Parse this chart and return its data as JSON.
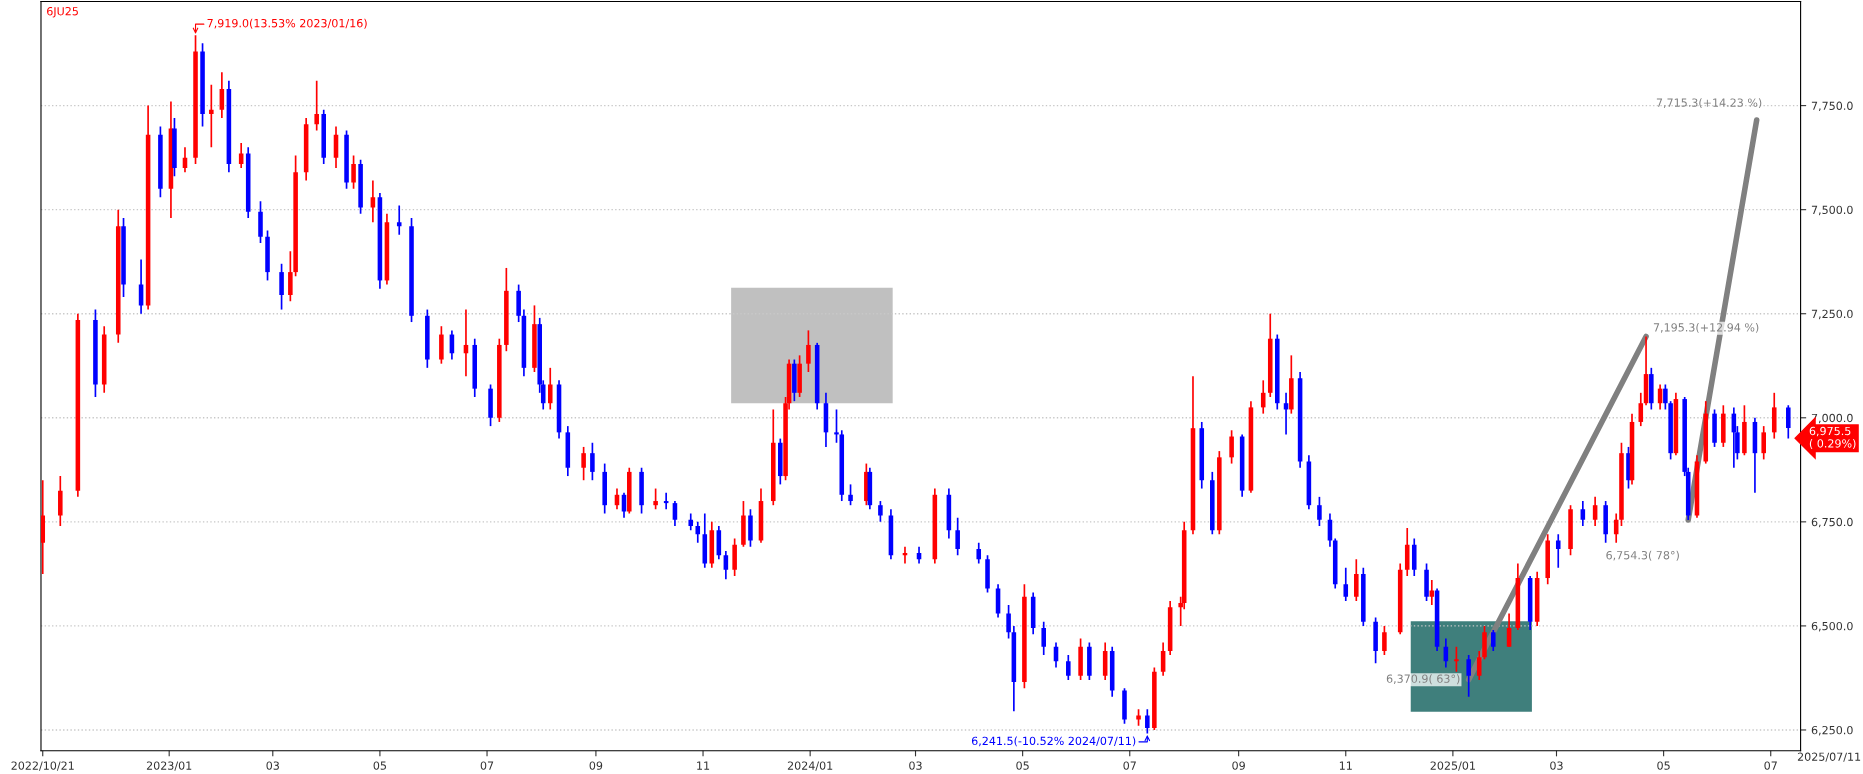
{
  "chart_data": {
    "type": "candlestick",
    "title": "6JU25",
    "x": [
      "2022-10-21",
      "2022-10-31",
      "2022-11-10",
      "2022-11-20",
      "2022-11-25",
      "2022-12-03",
      "2022-12-06",
      "2022-12-16",
      "2022-12-20",
      "2022-12-27",
      "2023-01-02",
      "2023-01-04",
      "2023-01-10",
      "2023-01-16",
      "2023-01-20",
      "2023-01-25",
      "2023-01-31",
      "2023-02-04",
      "2023-02-11",
      "2023-02-15",
      "2023-02-22",
      "2023-02-26",
      "2023-03-06",
      "2023-03-11",
      "2023-03-14",
      "2023-03-20",
      "2023-03-26",
      "2023-03-30",
      "2023-04-06",
      "2023-04-12",
      "2023-04-16",
      "2023-04-20",
      "2023-04-27",
      "2023-05-01",
      "2023-05-05",
      "2023-05-12",
      "2023-05-19",
      "2023-05-28",
      "2023-06-05",
      "2023-06-11",
      "2023-06-19",
      "2023-06-24",
      "2023-07-03",
      "2023-07-08",
      "2023-07-12",
      "2023-07-19",
      "2023-07-22",
      "2023-07-28",
      "2023-07-31",
      "2023-08-02",
      "2023-08-06",
      "2023-08-11",
      "2023-08-16",
      "2023-08-25",
      "2023-08-30",
      "2023-09-06",
      "2023-09-13",
      "2023-09-17",
      "2023-09-20",
      "2023-09-27",
      "2023-10-05",
      "2023-10-11",
      "2023-10-16",
      "2023-10-25",
      "2023-10-29",
      "2023-11-02",
      "2023-11-06",
      "2023-11-10",
      "2023-11-14",
      "2023-11-19",
      "2023-11-24",
      "2023-11-28",
      "2023-12-04",
      "2023-12-11",
      "2023-12-15",
      "2023-12-18",
      "2023-12-20",
      "2023-12-23",
      "2023-12-26",
      "2023-12-31",
      "2024-01-05",
      "2024-01-10",
      "2024-01-16",
      "2024-01-19",
      "2024-01-24",
      "2024-02-02",
      "2024-02-04",
      "2024-02-10",
      "2024-02-16",
      "2024-02-24",
      "2024-03-03",
      "2024-03-12",
      "2024-03-20",
      "2024-03-25",
      "2024-04-06",
      "2024-04-11",
      "2024-04-17",
      "2024-04-23",
      "2024-04-26",
      "2024-05-02",
      "2024-05-07",
      "2024-05-13",
      "2024-05-20",
      "2024-05-27",
      "2024-06-03",
      "2024-06-08",
      "2024-06-17",
      "2024-06-21",
      "2024-06-28",
      "2024-07-06",
      "2024-07-11",
      "2024-07-15",
      "2024-07-20",
      "2024-07-24",
      "2024-07-30",
      "2024-08-01",
      "2024-08-06",
      "2024-08-11",
      "2024-08-17",
      "2024-08-21",
      "2024-08-28",
      "2024-09-03",
      "2024-09-08",
      "2024-09-15",
      "2024-09-19",
      "2024-09-23",
      "2024-09-28",
      "2024-10-01",
      "2024-10-06",
      "2024-10-11",
      "2024-10-17",
      "2024-10-23",
      "2024-10-26",
      "2024-11-01",
      "2024-11-07",
      "2024-11-11",
      "2024-11-18",
      "2024-11-23",
      "2024-12-02",
      "2024-12-06",
      "2024-12-10",
      "2024-12-17",
      "2024-12-20",
      "2024-12-23",
      "2024-12-28",
      "2025-01-03",
      "2025-01-10",
      "2025-01-16",
      "2025-01-19",
      "2025-01-24",
      "2025-02-02",
      "2025-02-07",
      "2025-02-14",
      "2025-02-18",
      "2025-02-24",
      "2025-03-02",
      "2025-03-09",
      "2025-03-16",
      "2025-03-23",
      "2025-03-29",
      "2025-04-04",
      "2025-04-07",
      "2025-04-11",
      "2025-04-13",
      "2025-04-18",
      "2025-04-21",
      "2025-04-24",
      "2025-04-29",
      "2025-05-02",
      "2025-05-05",
      "2025-05-08",
      "2025-05-13",
      "2025-05-15",
      "2025-05-20",
      "2025-05-25",
      "2025-05-30",
      "2025-06-04",
      "2025-06-10",
      "2025-06-12",
      "2025-06-16",
      "2025-06-22",
      "2025-06-27",
      "2025-07-03",
      "2025-07-11"
    ],
    "ohlc": [
      [
        6700,
        6850,
        6625,
        6765
      ],
      [
        6765,
        6860,
        6740,
        6825
      ],
      [
        6825,
        7250,
        6810,
        7235
      ],
      [
        7235,
        7260,
        7050,
        7080
      ],
      [
        7080,
        7220,
        7060,
        7200
      ],
      [
        7200,
        7500,
        7180,
        7460
      ],
      [
        7460,
        7480,
        7290,
        7320
      ],
      [
        7320,
        7380,
        7250,
        7270
      ],
      [
        7270,
        7750,
        7260,
        7680
      ],
      [
        7680,
        7700,
        7530,
        7550
      ],
      [
        7550,
        7760,
        7480,
        7695
      ],
      [
        7695,
        7720,
        7580,
        7600
      ],
      [
        7600,
        7650,
        7590,
        7625
      ],
      [
        7625,
        7919,
        7610,
        7880
      ],
      [
        7880,
        7900,
        7700,
        7730
      ],
      [
        7730,
        7800,
        7650,
        7740
      ],
      [
        7740,
        7830,
        7720,
        7790
      ],
      [
        7790,
        7810,
        7590,
        7610
      ],
      [
        7610,
        7660,
        7600,
        7635
      ],
      [
        7635,
        7650,
        7480,
        7495
      ],
      [
        7495,
        7520,
        7420,
        7435
      ],
      [
        7435,
        7450,
        7330,
        7350
      ],
      [
        7350,
        7370,
        7260,
        7295
      ],
      [
        7295,
        7400,
        7280,
        7350
      ],
      [
        7350,
        7630,
        7340,
        7590
      ],
      [
        7590,
        7720,
        7570,
        7705
      ],
      [
        7705,
        7810,
        7690,
        7730
      ],
      [
        7730,
        7740,
        7610,
        7625
      ],
      [
        7625,
        7700,
        7600,
        7680
      ],
      [
        7680,
        7690,
        7550,
        7565
      ],
      [
        7565,
        7630,
        7550,
        7610
      ],
      [
        7610,
        7620,
        7490,
        7505
      ],
      [
        7505,
        7570,
        7470,
        7530
      ],
      [
        7530,
        7540,
        7310,
        7330
      ],
      [
        7330,
        7490,
        7320,
        7470
      ],
      [
        7470,
        7510,
        7440,
        7460
      ],
      [
        7460,
        7480,
        7230,
        7245
      ],
      [
        7245,
        7260,
        7120,
        7140
      ],
      [
        7140,
        7220,
        7130,
        7200
      ],
      [
        7200,
        7210,
        7140,
        7155
      ],
      [
        7155,
        7260,
        7100,
        7175
      ],
      [
        7175,
        7190,
        7050,
        7070
      ],
      [
        7070,
        7080,
        6980,
        7000
      ],
      [
        7000,
        7190,
        6990,
        7175
      ],
      [
        7175,
        7360,
        7160,
        7305
      ],
      [
        7305,
        7320,
        7230,
        7245
      ],
      [
        7245,
        7260,
        7100,
        7120
      ],
      [
        7120,
        7270,
        7110,
        7225
      ],
      [
        7225,
        7240,
        7060,
        7080
      ],
      [
        7080,
        7090,
        7020,
        7035
      ],
      [
        7035,
        7120,
        7020,
        7080
      ],
      [
        7080,
        7090,
        6950,
        6965
      ],
      [
        6965,
        6980,
        6860,
        6880
      ],
      [
        6880,
        6930,
        6850,
        6915
      ],
      [
        6915,
        6940,
        6850,
        6870
      ],
      [
        6870,
        6890,
        6770,
        6790
      ],
      [
        6790,
        6830,
        6780,
        6815
      ],
      [
        6815,
        6820,
        6760,
        6775
      ],
      [
        6775,
        6880,
        6770,
        6870
      ],
      [
        6870,
        6880,
        6770,
        6790
      ],
      [
        6790,
        6830,
        6780,
        6800
      ],
      [
        6800,
        6820,
        6780,
        6795
      ],
      [
        6795,
        6800,
        6740,
        6755
      ],
      [
        6755,
        6770,
        6730,
        6740
      ],
      [
        6740,
        6750,
        6700,
        6720
      ],
      [
        6720,
        6770,
        6640,
        6650
      ],
      [
        6650,
        6750,
        6640,
        6730
      ],
      [
        6730,
        6740,
        6660,
        6670
      ],
      [
        6670,
        6680,
        6612,
        6635
      ],
      [
        6635,
        6710,
        6620,
        6695
      ],
      [
        6695,
        6800,
        6690,
        6765
      ],
      [
        6765,
        6780,
        6690,
        6705
      ],
      [
        6705,
        6830,
        6700,
        6800
      ],
      [
        6800,
        7020,
        6790,
        6940
      ],
      [
        6940,
        6950,
        6840,
        6860
      ],
      [
        6860,
        7050,
        6850,
        7035
      ],
      [
        7035,
        7140,
        7020,
        7130
      ],
      [
        7130,
        7140,
        7040,
        7060
      ],
      [
        7060,
        7150,
        7050,
        7130
      ],
      [
        7130,
        7210,
        7110,
        7175
      ],
      [
        7175,
        7180,
        7020,
        7035
      ],
      [
        7035,
        7060,
        6930,
        6965
      ],
      [
        6965,
        7020,
        6940,
        6960
      ],
      [
        6960,
        6970,
        6800,
        6815
      ],
      [
        6815,
        6840,
        6790,
        6800
      ],
      [
        6800,
        6890,
        6790,
        6870
      ],
      [
        6870,
        6880,
        6780,
        6790
      ],
      [
        6790,
        6800,
        6750,
        6765
      ],
      [
        6765,
        6780,
        6660,
        6670
      ],
      [
        6670,
        6690,
        6650,
        6675
      ],
      [
        6675,
        6690,
        6650,
        6660
      ],
      [
        6660,
        6830,
        6650,
        6815
      ],
      [
        6815,
        6830,
        6710,
        6730
      ],
      [
        6730,
        6760,
        6670,
        6685
      ],
      [
        6685,
        6700,
        6650,
        6660
      ],
      [
        6660,
        6670,
        6580,
        6590
      ],
      [
        6590,
        6600,
        6520,
        6530
      ],
      [
        6530,
        6550,
        6470,
        6485
      ],
      [
        6485,
        6500,
        6295,
        6365
      ],
      [
        6365,
        6600,
        6350,
        6570
      ],
      [
        6570,
        6580,
        6480,
        6495
      ],
      [
        6495,
        6510,
        6430,
        6450
      ],
      [
        6450,
        6460,
        6400,
        6415
      ],
      [
        6415,
        6430,
        6370,
        6380
      ],
      [
        6380,
        6470,
        6370,
        6450
      ],
      [
        6450,
        6460,
        6370,
        6380
      ],
      [
        6380,
        6460,
        6370,
        6440
      ],
      [
        6440,
        6450,
        6330,
        6345
      ],
      [
        6345,
        6350,
        6265,
        6275
      ],
      [
        6275,
        6300,
        6260,
        6285
      ],
      [
        6285,
        6300,
        6241.5,
        6255
      ],
      [
        6255,
        6400,
        6250,
        6390
      ],
      [
        6390,
        6460,
        6380,
        6440
      ],
      [
        6440,
        6560,
        6430,
        6545
      ],
      [
        6545,
        6570,
        6500,
        6555
      ],
      [
        6555,
        6750,
        6540,
        6730
      ],
      [
        6730,
        7100,
        6720,
        6975
      ],
      [
        6975,
        6990,
        6830,
        6850
      ],
      [
        6850,
        6870,
        6720,
        6730
      ],
      [
        6730,
        6920,
        6720,
        6905
      ],
      [
        6905,
        6970,
        6890,
        6955
      ],
      [
        6955,
        6960,
        6810,
        6825
      ],
      [
        6825,
        7040,
        6820,
        7025
      ],
      [
        7025,
        7090,
        7010,
        7060
      ],
      [
        7060,
        7250,
        7050,
        7190
      ],
      [
        7190,
        7200,
        7020,
        7035
      ],
      [
        7035,
        7060,
        6960,
        7020
      ],
      [
        7020,
        7150,
        7010,
        7095
      ],
      [
        7095,
        7110,
        6880,
        6895
      ],
      [
        6895,
        6910,
        6780,
        6790
      ],
      [
        6790,
        6810,
        6740,
        6755
      ],
      [
        6755,
        6770,
        6690,
        6705
      ],
      [
        6705,
        6710,
        6590,
        6600
      ],
      [
        6600,
        6640,
        6560,
        6570
      ],
      [
        6570,
        6660,
        6560,
        6625
      ],
      [
        6625,
        6640,
        6500,
        6510
      ],
      [
        6510,
        6520,
        6410,
        6440
      ],
      [
        6440,
        6500,
        6430,
        6485
      ],
      [
        6485,
        6650,
        6480,
        6635
      ],
      [
        6635,
        6735,
        6620,
        6695
      ],
      [
        6695,
        6710,
        6620,
        6635
      ],
      [
        6635,
        6650,
        6560,
        6570
      ],
      [
        6570,
        6610,
        6550,
        6585
      ],
      [
        6585,
        6590,
        6440,
        6450
      ],
      [
        6450,
        6470,
        6400,
        6415
      ],
      [
        6415,
        6450,
        6390,
        6420
      ],
      [
        6420,
        6430,
        6330,
        6380
      ],
      [
        6380,
        6440,
        6370,
        6425
      ],
      [
        6425,
        6500,
        6420,
        6485
      ],
      [
        6485,
        6490,
        6440,
        6450
      ],
      [
        6450,
        6530,
        6450,
        6495
      ],
      [
        6495,
        6650,
        6490,
        6615
      ],
      [
        6615,
        6620,
        6490,
        6510
      ],
      [
        6510,
        6630,
        6500,
        6615
      ],
      [
        6615,
        6720,
        6600,
        6705
      ],
      [
        6705,
        6720,
        6640,
        6685
      ],
      [
        6685,
        6790,
        6670,
        6780
      ],
      [
        6780,
        6800,
        6740,
        6755
      ],
      [
        6755,
        6810,
        6740,
        6790
      ],
      [
        6790,
        6800,
        6700,
        6720
      ],
      [
        6720,
        6770,
        6700,
        6755
      ],
      [
        6755,
        6940,
        6740,
        6915
      ],
      [
        6915,
        6930,
        6830,
        6850
      ],
      [
        6850,
        7010,
        6840,
        6990
      ],
      [
        6990,
        7060,
        6980,
        7035
      ],
      [
        7035,
        7195.3,
        7030,
        7105
      ],
      [
        7105,
        7120,
        7020,
        7035
      ],
      [
        7035,
        7080,
        7020,
        7070
      ],
      [
        7070,
        7080,
        7020,
        7035
      ],
      [
        7035,
        7040,
        6900,
        6915
      ],
      [
        6915,
        7060,
        6910,
        7045
      ],
      [
        7045,
        7050,
        6860,
        6870
      ],
      [
        6870,
        6880,
        6754.3,
        6765
      ],
      [
        6765,
        6910,
        6760,
        6895
      ],
      [
        6895,
        7040,
        6890,
        7010
      ],
      [
        7010,
        7020,
        6930,
        6940
      ],
      [
        6940,
        7030,
        6930,
        7010
      ],
      [
        7010,
        7025,
        6880,
        6965
      ],
      [
        6965,
        6980,
        6900,
        6915
      ],
      [
        6915,
        7030,
        6910,
        6990
      ],
      [
        6990,
        7000,
        6820,
        6915
      ],
      [
        6915,
        6980,
        6900,
        6965
      ],
      [
        6965,
        7060,
        6950,
        7025
      ],
      [
        7025,
        7030,
        6950,
        6975.5
      ]
    ],
    "colors": [
      "#ff0000",
      "#ff0000",
      "#ff0000",
      "#0000ff",
      "#ff0000",
      "#ff0000",
      "#0000ff",
      "#0000ff",
      "#ff0000",
      "#0000ff",
      "#ff0000",
      "#0000ff",
      "#ff0000",
      "#ff0000",
      "#0000ff",
      "#ff0000",
      "#ff0000",
      "#0000ff",
      "#ff0000",
      "#0000ff",
      "#0000ff",
      "#0000ff",
      "#0000ff",
      "#ff0000",
      "#ff0000",
      "#ff0000",
      "#ff0000",
      "#0000ff",
      "#ff0000",
      "#0000ff",
      "#ff0000",
      "#0000ff",
      "#ff0000",
      "#0000ff",
      "#ff0000",
      "#0000ff",
      "#0000ff",
      "#0000ff",
      "#ff0000",
      "#0000ff",
      "#ff0000",
      "#0000ff",
      "#0000ff",
      "#ff0000",
      "#ff0000",
      "#0000ff",
      "#0000ff",
      "#ff0000",
      "#0000ff",
      "#0000ff",
      "#ff0000",
      "#0000ff",
      "#0000ff",
      "#ff0000",
      "#0000ff",
      "#0000ff",
      "#ff0000",
      "#0000ff",
      "#ff0000",
      "#0000ff",
      "#ff0000",
      "#0000ff",
      "#0000ff",
      "#0000ff",
      "#0000ff",
      "#0000ff",
      "#ff0000",
      "#0000ff",
      "#0000ff",
      "#ff0000",
      "#ff0000",
      "#0000ff",
      "#ff0000",
      "#ff0000",
      "#0000ff",
      "#ff0000",
      "#ff0000",
      "#0000ff",
      "#ff0000",
      "#ff0000",
      "#0000ff",
      "#0000ff",
      "#0000ff",
      "#0000ff",
      "#0000ff",
      "#ff0000",
      "#0000ff",
      "#0000ff",
      "#0000ff",
      "#ff0000",
      "#0000ff",
      "#ff0000",
      "#0000ff",
      "#0000ff",
      "#0000ff",
      "#0000ff",
      "#0000ff",
      "#0000ff",
      "#0000ff",
      "#ff0000",
      "#0000ff",
      "#0000ff",
      "#0000ff",
      "#0000ff",
      "#ff0000",
      "#0000ff",
      "#ff0000",
      "#0000ff",
      "#0000ff",
      "#ff0000",
      "#0000ff",
      "#ff0000",
      "#ff0000",
      "#ff0000",
      "#ff0000",
      "#ff0000",
      "#ff0000",
      "#0000ff",
      "#0000ff",
      "#ff0000",
      "#ff0000",
      "#0000ff",
      "#ff0000",
      "#ff0000",
      "#ff0000",
      "#0000ff",
      "#0000ff",
      "#ff0000",
      "#0000ff",
      "#0000ff",
      "#0000ff",
      "#0000ff",
      "#0000ff",
      "#0000ff",
      "#ff0000",
      "#0000ff",
      "#0000ff",
      "#ff0000",
      "#ff0000",
      "#ff0000",
      "#0000ff",
      "#0000ff",
      "#ff0000",
      "#0000ff",
      "#0000ff",
      "#ff0000",
      "#0000ff",
      "#ff0000",
      "#ff0000",
      "#0000ff",
      "#ff0000",
      "#ff0000",
      "#0000ff",
      "#ff0000",
      "#ff0000",
      "#0000ff",
      "#ff0000",
      "#0000ff",
      "#ff0000",
      "#0000ff",
      "#ff0000",
      "#ff0000",
      "#0000ff",
      "#ff0000",
      "#ff0000",
      "#ff0000",
      "#0000ff",
      "#ff0000",
      "#0000ff",
      "#0000ff",
      "#ff0000",
      "#0000ff",
      "#0000ff",
      "#ff0000",
      "#ff0000",
      "#0000ff",
      "#ff0000",
      "#0000ff",
      "#0000ff",
      "#ff0000",
      "#0000ff",
      "#ff0000",
      "#ff0000",
      "#0000ff"
    ],
    "series": [
      {
        "type": "line",
        "x": [
          "2025-01-10",
          "2025-04-21"
        ],
        "values": [
          6370.9,
          7195.3
        ],
        "color": "#808080"
      },
      {
        "type": "line",
        "x": [
          "2025-05-15",
          "2025-06-23"
        ],
        "values": [
          6754.3,
          7715.3
        ],
        "color": "#808080"
      }
    ],
    "xlim": [
      "2022-10-20",
      "2025-07-18"
    ],
    "xticks": [
      {
        "value": "2022-10-21",
        "label": "2022/10/21"
      },
      {
        "value": "2023-01-01",
        "label": "2023/01"
      },
      {
        "value": "2023-03-01",
        "label": "03"
      },
      {
        "value": "2023-05-01",
        "label": "05"
      },
      {
        "value": "2023-07-01",
        "label": "07"
      },
      {
        "value": "2023-09-01",
        "label": "09"
      },
      {
        "value": "2023-11-01",
        "label": "11"
      },
      {
        "value": "2024-01-01",
        "label": "2024/01"
      },
      {
        "value": "2024-03-01",
        "label": "03"
      },
      {
        "value": "2024-05-01",
        "label": "05"
      },
      {
        "value": "2024-07-01",
        "label": "07"
      },
      {
        "value": "2024-09-01",
        "label": "09"
      },
      {
        "value": "2024-11-01",
        "label": "11"
      },
      {
        "value": "2025-01-01",
        "label": "2025/01"
      },
      {
        "value": "2025-03-01",
        "label": "03"
      },
      {
        "value": "2025-05-01",
        "label": "05"
      },
      {
        "value": "2025-07-01",
        "label": "07"
      }
    ],
    "ylim": [
      6200,
      8000
    ],
    "yticks": [
      {
        "value": 6250,
        "label": "6,250.0"
      },
      {
        "value": 6500,
        "label": "6,500.0"
      },
      {
        "value": 6750,
        "label": "6,750.0"
      },
      {
        "value": 7000,
        "label": "7,000.0"
      },
      {
        "value": 7250,
        "label": "7,250.0"
      },
      {
        "value": 7500,
        "label": "7,500.0"
      },
      {
        "value": 7750,
        "label": "7,750.0"
      }
    ],
    "bands": [
      {
        "axis": "x",
        "from": "2023-11-17",
        "to": "2024-02-17",
        "color": "#c0c0c0"
      },
      {
        "axis": "x",
        "from": "2024-12-08",
        "to": "2025-02-15",
        "color": "#3f7f7c"
      }
    ],
    "grid": "y",
    "annotations": [
      {
        "text": "7,919.0(13.53% 2023/01/16)",
        "x": "2023-01-16",
        "y": 7919
      },
      {
        "text": "6,241.5(-10.52% 2024/07/11)",
        "x": "2024-07-11",
        "y": 6241.5
      },
      {
        "text": "6,370.9( 63°)",
        "x": "2025-01-10",
        "y": 6370.9
      },
      {
        "text": "7,195.3(+12.94 %)",
        "x": "2025-04-21",
        "y": 7195.3
      },
      {
        "text": "6,754.3( 78°)",
        "x": "2025-05-15",
        "y": 6754.3
      },
      {
        "text": "7,715.3(+14.23 %)",
        "x": "2025-06-23",
        "y": 7715.3
      },
      {
        "text": "6,975.5\n( 0.29%)",
        "x": "2025-07-11",
        "y": 6975.5
      },
      "2025/07/11"
    ]
  }
}
